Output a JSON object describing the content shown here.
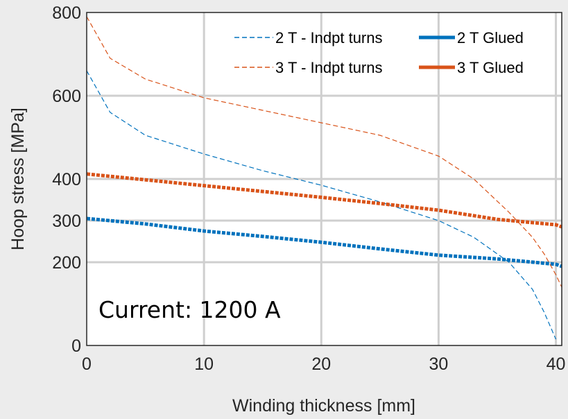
{
  "chart_data": {
    "type": "line",
    "xlabel": "Winding thickness [mm]",
    "ylabel": "Hoop stress [MPa]",
    "xlim": [
      0,
      40.5
    ],
    "ylim": [
      0,
      800
    ],
    "xticks": [
      0,
      10,
      20,
      30,
      40
    ],
    "yticks": [
      0,
      200,
      300,
      400,
      600,
      800
    ],
    "grid": true,
    "legend_position": "top-right",
    "annotation": "Current: 1200 A",
    "series": [
      {
        "name": "2 T - Indpt turns",
        "style": "dashed",
        "color": "#0072BD",
        "x": [
          0,
          2,
          5,
          10,
          15,
          20,
          25,
          30,
          33,
          36,
          38,
          39,
          40
        ],
        "y": [
          660,
          560,
          505,
          460,
          420,
          385,
          345,
          300,
          260,
          200,
          135,
          80,
          15
        ]
      },
      {
        "name": "2 T Glued",
        "style": "solid-marker",
        "color": "#0072BD",
        "x": [
          0,
          5,
          10,
          15,
          20,
          25,
          30,
          35,
          40,
          40.5
        ],
        "y": [
          305,
          292,
          275,
          262,
          248,
          232,
          217,
          208,
          195,
          190
        ]
      },
      {
        "name": "3 T - Indpt turns",
        "style": "dashed",
        "color": "#D95319",
        "x": [
          0,
          2,
          5,
          10,
          15,
          20,
          25,
          30,
          33,
          36,
          38,
          39,
          40,
          40.5
        ],
        "y": [
          790,
          690,
          640,
          595,
          565,
          535,
          505,
          455,
          400,
          320,
          260,
          220,
          170,
          140
        ]
      },
      {
        "name": "3 T Glued",
        "style": "solid-marker",
        "color": "#D95319",
        "x": [
          0,
          5,
          10,
          15,
          20,
          25,
          30,
          35,
          40,
          40.5
        ],
        "y": [
          412,
          398,
          384,
          370,
          356,
          341,
          325,
          303,
          290,
          285
        ]
      }
    ]
  }
}
